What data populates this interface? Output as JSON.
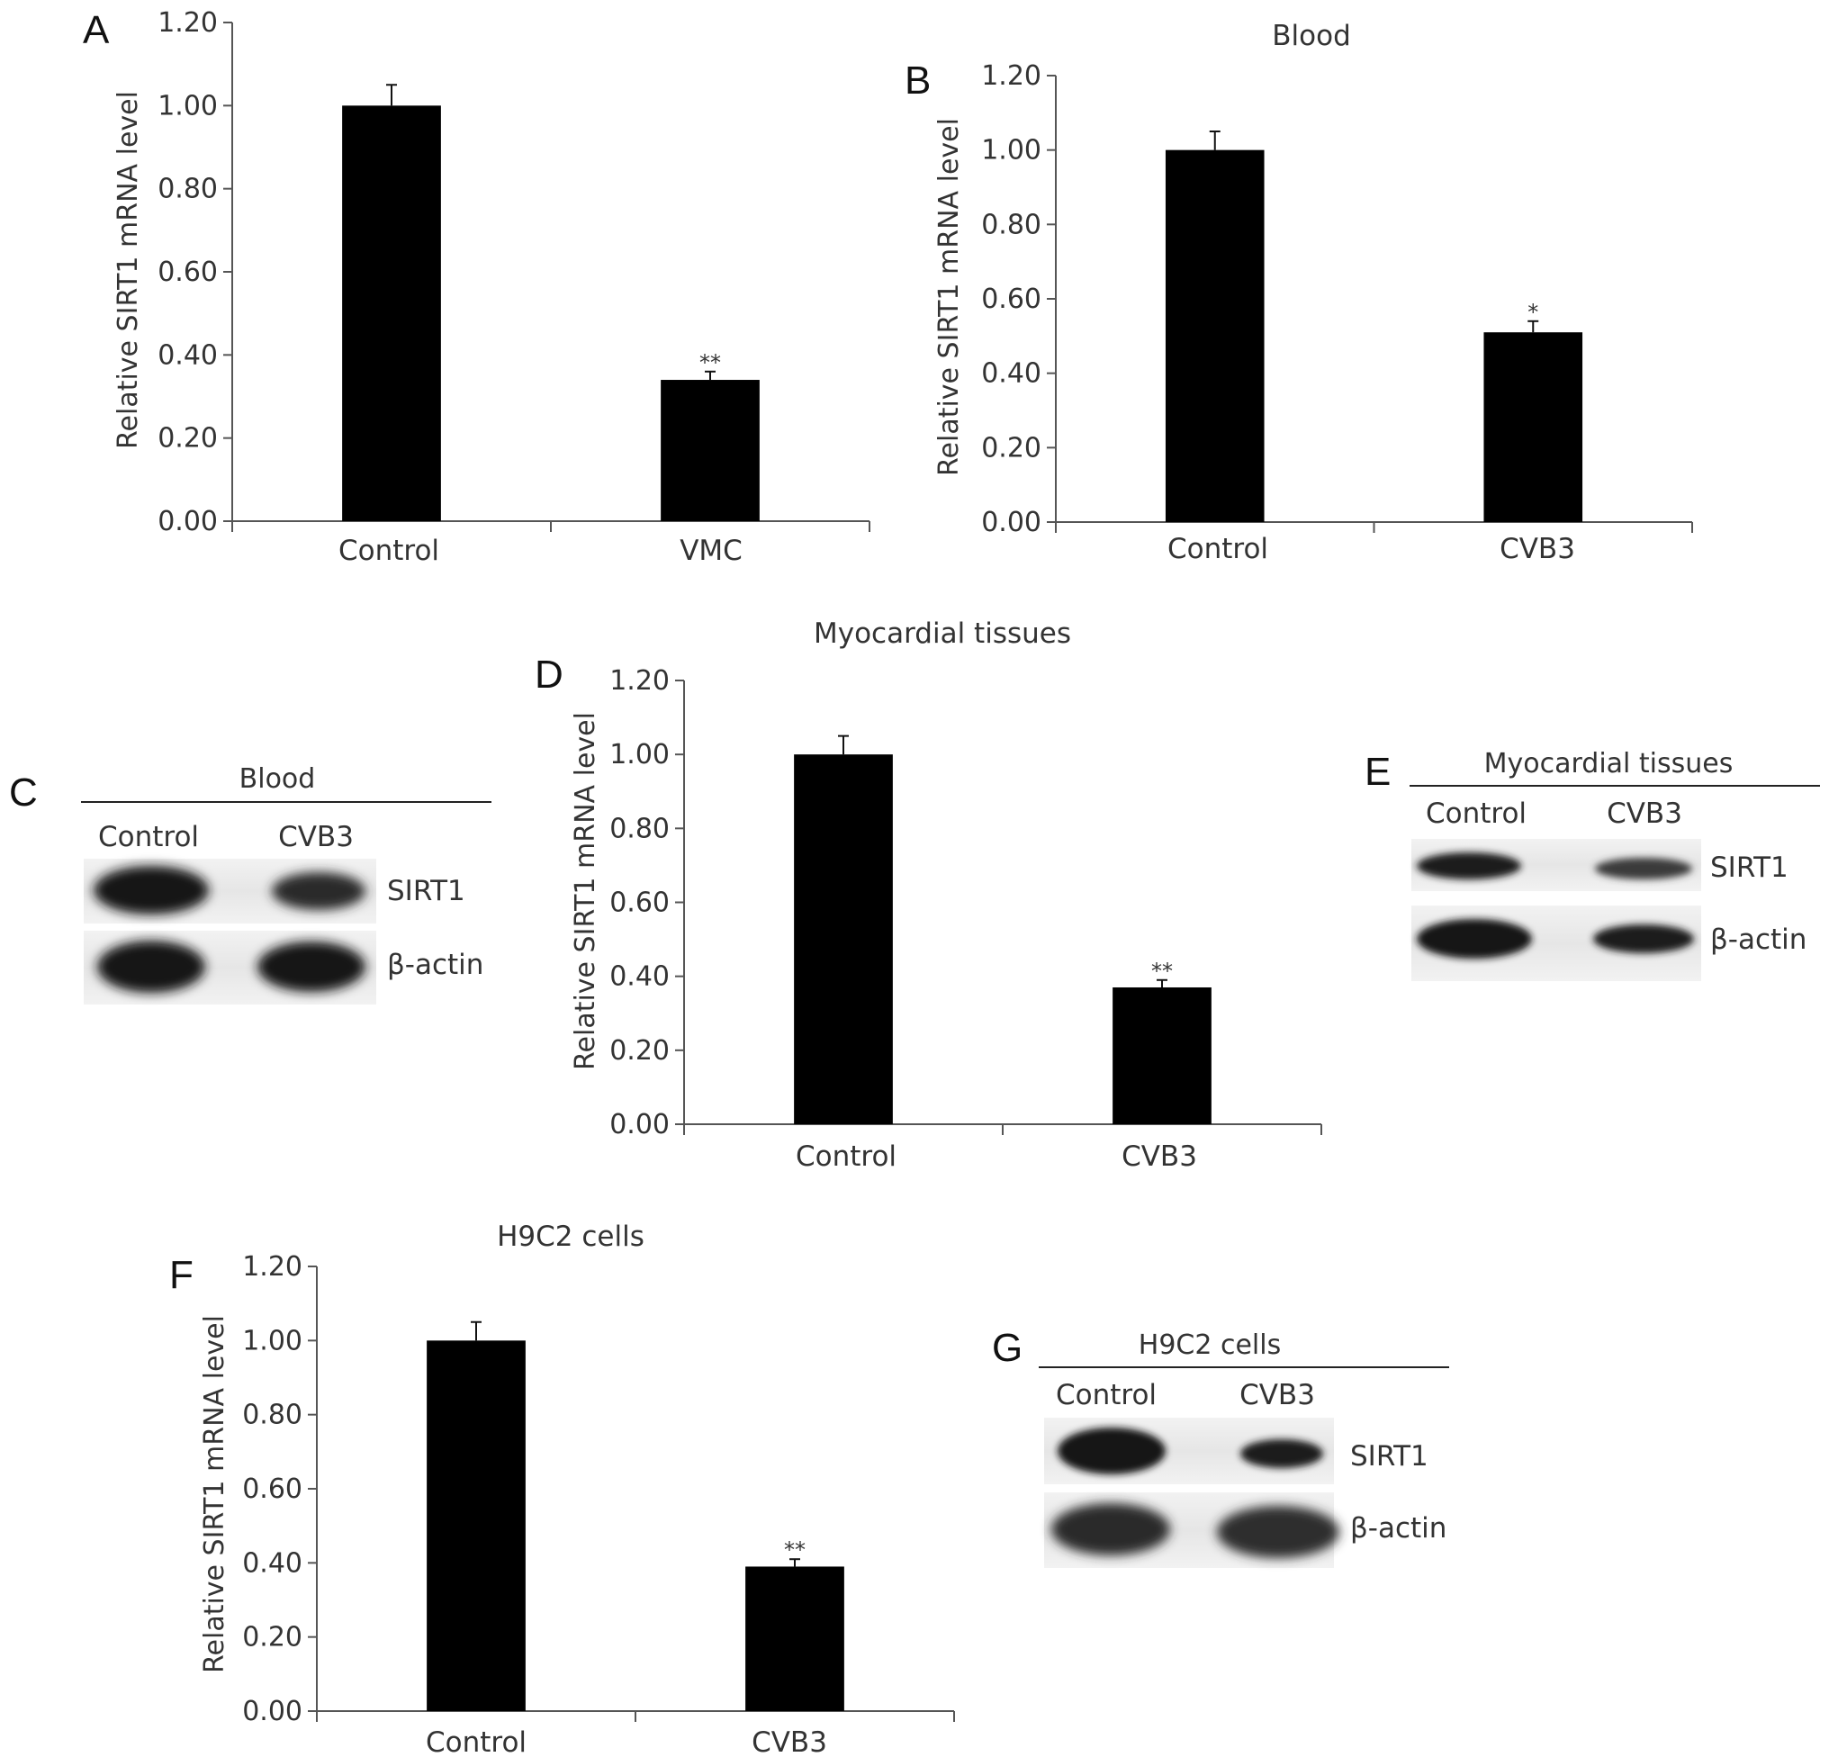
{
  "chart_data": [
    {
      "type": "bar",
      "panel": "A",
      "title": "",
      "ylabel": "Relative SIRT1 mRNA level",
      "categories": [
        "Control",
        "VMC"
      ],
      "values": [
        1.0,
        0.34
      ],
      "errors": [
        0.05,
        0.02
      ],
      "significance": [
        "",
        "**"
      ],
      "ylim": [
        0,
        1.2
      ],
      "yticks": [
        "0.00",
        "0.20",
        "0.40",
        "0.60",
        "0.80",
        "1.00",
        "1.20"
      ],
      "grid": false,
      "bar_color": "#000000"
    },
    {
      "type": "bar",
      "panel": "B",
      "title": "Blood",
      "ylabel": "Relative SIRT1 mRNA level",
      "categories": [
        "Control",
        "CVB3"
      ],
      "values": [
        1.0,
        0.51
      ],
      "errors": [
        0.05,
        0.03
      ],
      "significance": [
        "",
        "*"
      ],
      "ylim": [
        0,
        1.2
      ],
      "yticks": [
        "0.00",
        "0.20",
        "0.40",
        "0.60",
        "0.80",
        "1.00",
        "1.20"
      ],
      "grid": false,
      "bar_color": "#000000"
    },
    {
      "type": "bar",
      "panel": "D",
      "title": "Myocardial tissues",
      "ylabel": "Relative SIRT1 mRNA level",
      "categories": [
        "Control",
        "CVB3"
      ],
      "values": [
        1.0,
        0.37
      ],
      "errors": [
        0.05,
        0.02
      ],
      "significance": [
        "",
        "**"
      ],
      "ylim": [
        0,
        1.2
      ],
      "yticks": [
        "0.00",
        "0.20",
        "0.40",
        "0.60",
        "0.80",
        "1.00",
        "1.20"
      ],
      "grid": false,
      "bar_color": "#000000"
    },
    {
      "type": "bar",
      "panel": "F",
      "title": "H9C2 cells",
      "ylabel": "Relative SIRT1 mRNA level",
      "categories": [
        "Control",
        "CVB3"
      ],
      "values": [
        1.0,
        0.39
      ],
      "errors": [
        0.05,
        0.02
      ],
      "significance": [
        "",
        "**"
      ],
      "ylim": [
        0,
        1.2
      ],
      "yticks": [
        "0.00",
        "0.20",
        "0.40",
        "0.60",
        "0.80",
        "1.00",
        "1.20"
      ],
      "grid": false,
      "bar_color": "#000000"
    }
  ],
  "blots": [
    {
      "panel": "C",
      "title": "Blood",
      "lanes": [
        "Control",
        "CVB3"
      ],
      "bands": [
        "SIRT1",
        "β-actin"
      ]
    },
    {
      "panel": "E",
      "title": "Myocardial tissues",
      "lanes": [
        "Control",
        "CVB3"
      ],
      "bands": [
        "SIRT1",
        "β-actin"
      ]
    },
    {
      "panel": "G",
      "title": "H9C2 cells",
      "lanes": [
        "Control",
        "CVB3"
      ],
      "bands": [
        "SIRT1",
        "β-actin"
      ]
    }
  ]
}
